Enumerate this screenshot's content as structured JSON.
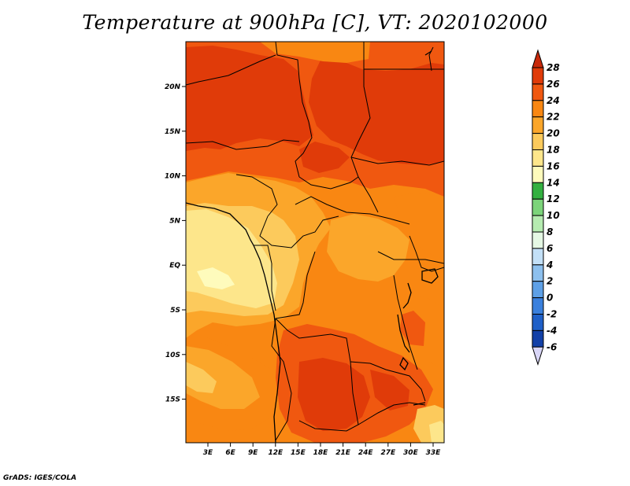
{
  "title": "Temperature at 900hPa [C], VT: 2020102000",
  "credit": "GrADS: IGES/COLA",
  "map": {
    "lat_range": [
      -20,
      24
    ],
    "lon_range": [
      0,
      35
    ],
    "y_ticks": [
      "20N",
      "15N",
      "10N",
      "5N",
      "EQ",
      "5S",
      "10S",
      "15S"
    ],
    "x_ticks": [
      "3E",
      "6E",
      "9E",
      "12E",
      "15E",
      "18E",
      "21E",
      "24E",
      "27E",
      "30E",
      "33E"
    ]
  },
  "colorbar": {
    "labels": [
      "28",
      "26",
      "24",
      "22",
      "20",
      "18",
      "16",
      "14",
      "12",
      "10",
      "8",
      "6",
      "4",
      "2",
      "0",
      "-2",
      "-4",
      "-6"
    ],
    "colors": [
      "#e03b09",
      "#f05810",
      "#f98712",
      "#fba62a",
      "#fcca5c",
      "#fde68b",
      "#fefbbc",
      "#33b040",
      "#7cd47a",
      "#b5ebb0",
      "#e5f8e4",
      "#c3e0f7",
      "#8dc0ee",
      "#5ea0e6",
      "#3a80dd",
      "#1f60c8",
      "#1240a8",
      "#0a1f80",
      "#0b0b52"
    ],
    "top_color": "#c8290a",
    "bottom_color": "#d9d6f7"
  }
}
